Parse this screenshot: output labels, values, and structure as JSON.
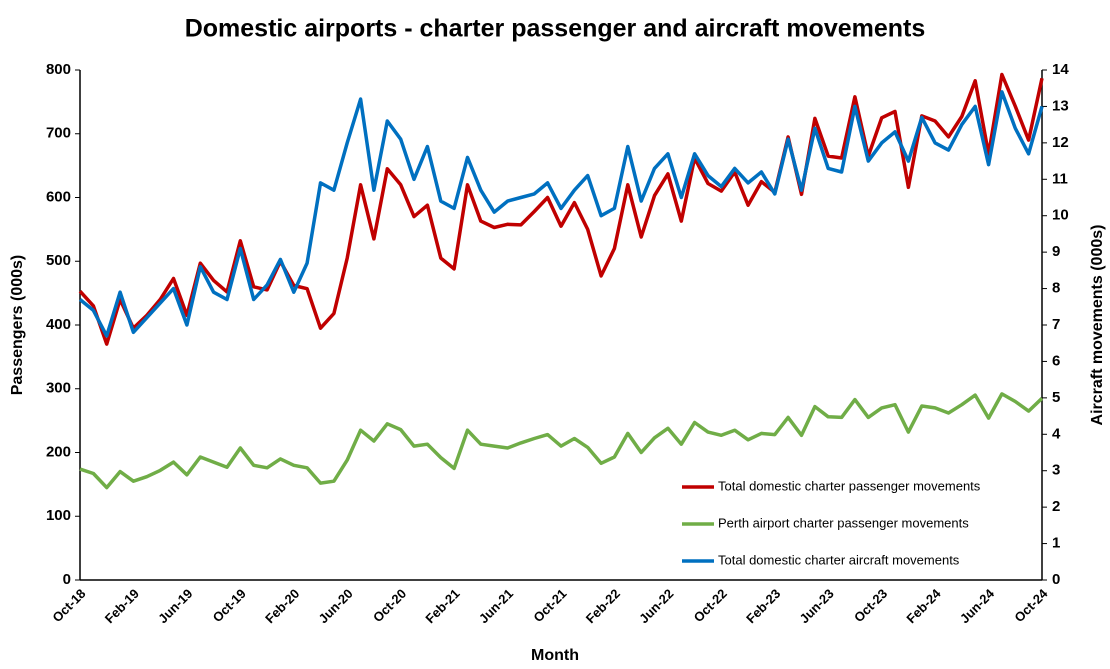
{
  "chart_data": {
    "type": "line",
    "title": "Domestic airports - charter passenger and aircraft movements",
    "x_label": "Month",
    "y_label": "Passengers (000s)",
    "y2_label": "Aircraft movements (000s)",
    "categories": [
      "Oct-18",
      null,
      null,
      null,
      "Feb-19",
      null,
      null,
      null,
      "Jun-19",
      null,
      null,
      null,
      "Oct-19",
      null,
      null,
      null,
      "Feb-20",
      null,
      null,
      null,
      "Jun-20",
      null,
      null,
      null,
      "Oct-20",
      null,
      null,
      null,
      "Feb-21",
      null,
      null,
      null,
      "Jun-21",
      null,
      null,
      null,
      "Oct-21",
      null,
      null,
      null,
      "Feb-22",
      null,
      null,
      null,
      "Jun-22",
      null,
      null,
      null,
      "Oct-22",
      null,
      null,
      null,
      "Feb-23",
      null,
      null,
      null,
      "Jun-23",
      null,
      null,
      null,
      "Oct-23",
      null,
      null,
      null,
      "Feb-24",
      null,
      null,
      null,
      "Jun-24",
      null,
      null,
      null,
      "Oct-24"
    ],
    "series": [
      {
        "name": "Total domestic charter passenger movements",
        "color": "#c00000",
        "axis": "y",
        "values": [
          453,
          430,
          370,
          440,
          395,
          415,
          440,
          473,
          415,
          497,
          470,
          452,
          532,
          460,
          455,
          500,
          462,
          457,
          395,
          418,
          505,
          620,
          535,
          645,
          620,
          570,
          588,
          505,
          488,
          620,
          563,
          553,
          558,
          557,
          578,
          600,
          555,
          592,
          550,
          477,
          520,
          620,
          538,
          603,
          637,
          563,
          662,
          622,
          610,
          640,
          588,
          625,
          608,
          695,
          605,
          724,
          665,
          662,
          758,
          665,
          725,
          735,
          616,
          728,
          720,
          695,
          727,
          783,
          668,
          793,
          743,
          690,
          787
        ]
      },
      {
        "name": "Perth airport charter passenger movements",
        "color": "#70ad47",
        "axis": "y",
        "values": [
          174,
          167,
          145,
          170,
          155,
          162,
          172,
          185,
          165,
          193,
          185,
          177,
          207,
          180,
          176,
          190,
          180,
          176,
          152,
          155,
          188,
          235,
          218,
          245,
          236,
          210,
          213,
          192,
          175,
          235,
          213,
          210,
          207,
          215,
          222,
          228,
          210,
          222,
          208,
          183,
          193,
          230,
          200,
          223,
          238,
          213,
          247,
          232,
          227,
          235,
          220,
          230,
          228,
          255,
          227,
          272,
          256,
          255,
          283,
          255,
          270,
          275,
          232,
          273,
          270,
          262,
          275,
          290,
          254,
          292,
          280,
          265,
          285
        ]
      },
      {
        "name": "Total domestic charter aircraft movements",
        "color": "#0070c0",
        "axis": "y2",
        "values": [
          7.7,
          7.4,
          6.7,
          7.9,
          6.8,
          7.2,
          7.6,
          8.0,
          7.0,
          8.6,
          7.9,
          7.7,
          9.1,
          7.7,
          8.1,
          8.8,
          7.9,
          8.7,
          10.9,
          10.7,
          12.0,
          13.2,
          10.7,
          12.6,
          12.1,
          11.0,
          11.9,
          10.4,
          10.2,
          11.6,
          10.7,
          10.1,
          10.4,
          10.5,
          10.6,
          10.9,
          10.2,
          10.7,
          11.1,
          10.0,
          10.2,
          11.9,
          10.4,
          11.3,
          11.7,
          10.5,
          11.7,
          11.1,
          10.8,
          11.3,
          10.9,
          11.2,
          10.6,
          12.1,
          10.7,
          12.4,
          11.3,
          11.2,
          13.0,
          11.5,
          12.0,
          12.3,
          11.5,
          12.7,
          12.0,
          11.8,
          12.5,
          13.0,
          11.4,
          13.4,
          12.4,
          11.7,
          13.0
        ]
      }
    ],
    "ylim": [
      0,
      800
    ],
    "yticks": [
      0,
      100,
      200,
      300,
      400,
      500,
      600,
      700,
      800
    ],
    "y2lim": [
      0,
      14
    ],
    "y2ticks": [
      0,
      1,
      2,
      3,
      4,
      5,
      6,
      7,
      8,
      9,
      10,
      11,
      12,
      13,
      14
    ],
    "legend": "lower right",
    "grid": false
  }
}
